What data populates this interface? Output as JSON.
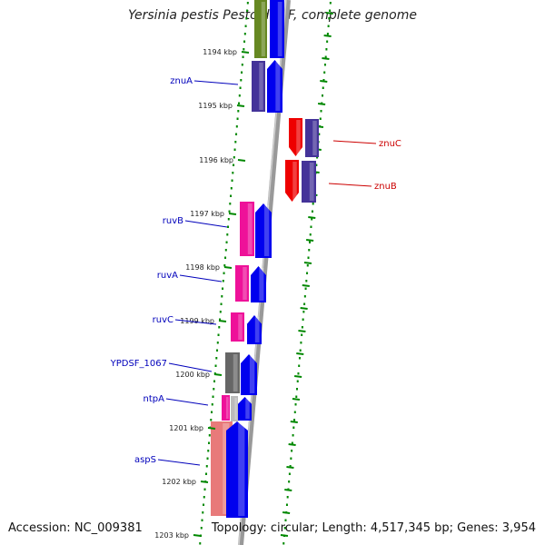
{
  "title": "Yersinia pestis Pestoides F, complete genome",
  "footer": {
    "accession": "Accession: NC_009381",
    "summary": "Topology: circular; Length: 4,517,345 bp; Genes: 3,954"
  },
  "ticks": [
    "1194 kbp",
    "1195 kbp",
    "1196 kbp",
    "1197 kbp",
    "1198 kbp",
    "1199 kbp",
    "1200 kbp",
    "1201 kbp",
    "1202 kbp",
    "1203 kbp"
  ],
  "gene_labels": [
    {
      "id": "znuA",
      "text": "znuA",
      "color": "#0000bb"
    },
    {
      "id": "ruvB",
      "text": "ruvB",
      "color": "#0000bb"
    },
    {
      "id": "ruvA",
      "text": "ruvA",
      "color": "#0000bb"
    },
    {
      "id": "ruvC",
      "text": "ruvC",
      "color": "#0000bb"
    },
    {
      "id": "ypdsf",
      "text": "YPDSF_1067",
      "color": "#0000bb"
    },
    {
      "id": "ntpA",
      "text": "ntpA",
      "color": "#0000bb"
    },
    {
      "id": "aspS",
      "text": "aspS",
      "color": "#0000bb"
    },
    {
      "id": "znuC",
      "text": "znuC",
      "color": "#cc0000"
    },
    {
      "id": "znuB",
      "text": "znuB",
      "color": "#cc0000"
    }
  ],
  "colors": {
    "tick_green": "#008800",
    "backbone": "#888888",
    "cds_blue": "#0000ee",
    "cds_magenta": "#ee1199",
    "cds_purple": "#443399",
    "cds_red": "#ee0000",
    "cds_gray": "#666666",
    "cds_salmon": "#e87a7a",
    "cds_olive": "#668822",
    "label_blue": "#0000bb",
    "label_red": "#cc0000"
  }
}
